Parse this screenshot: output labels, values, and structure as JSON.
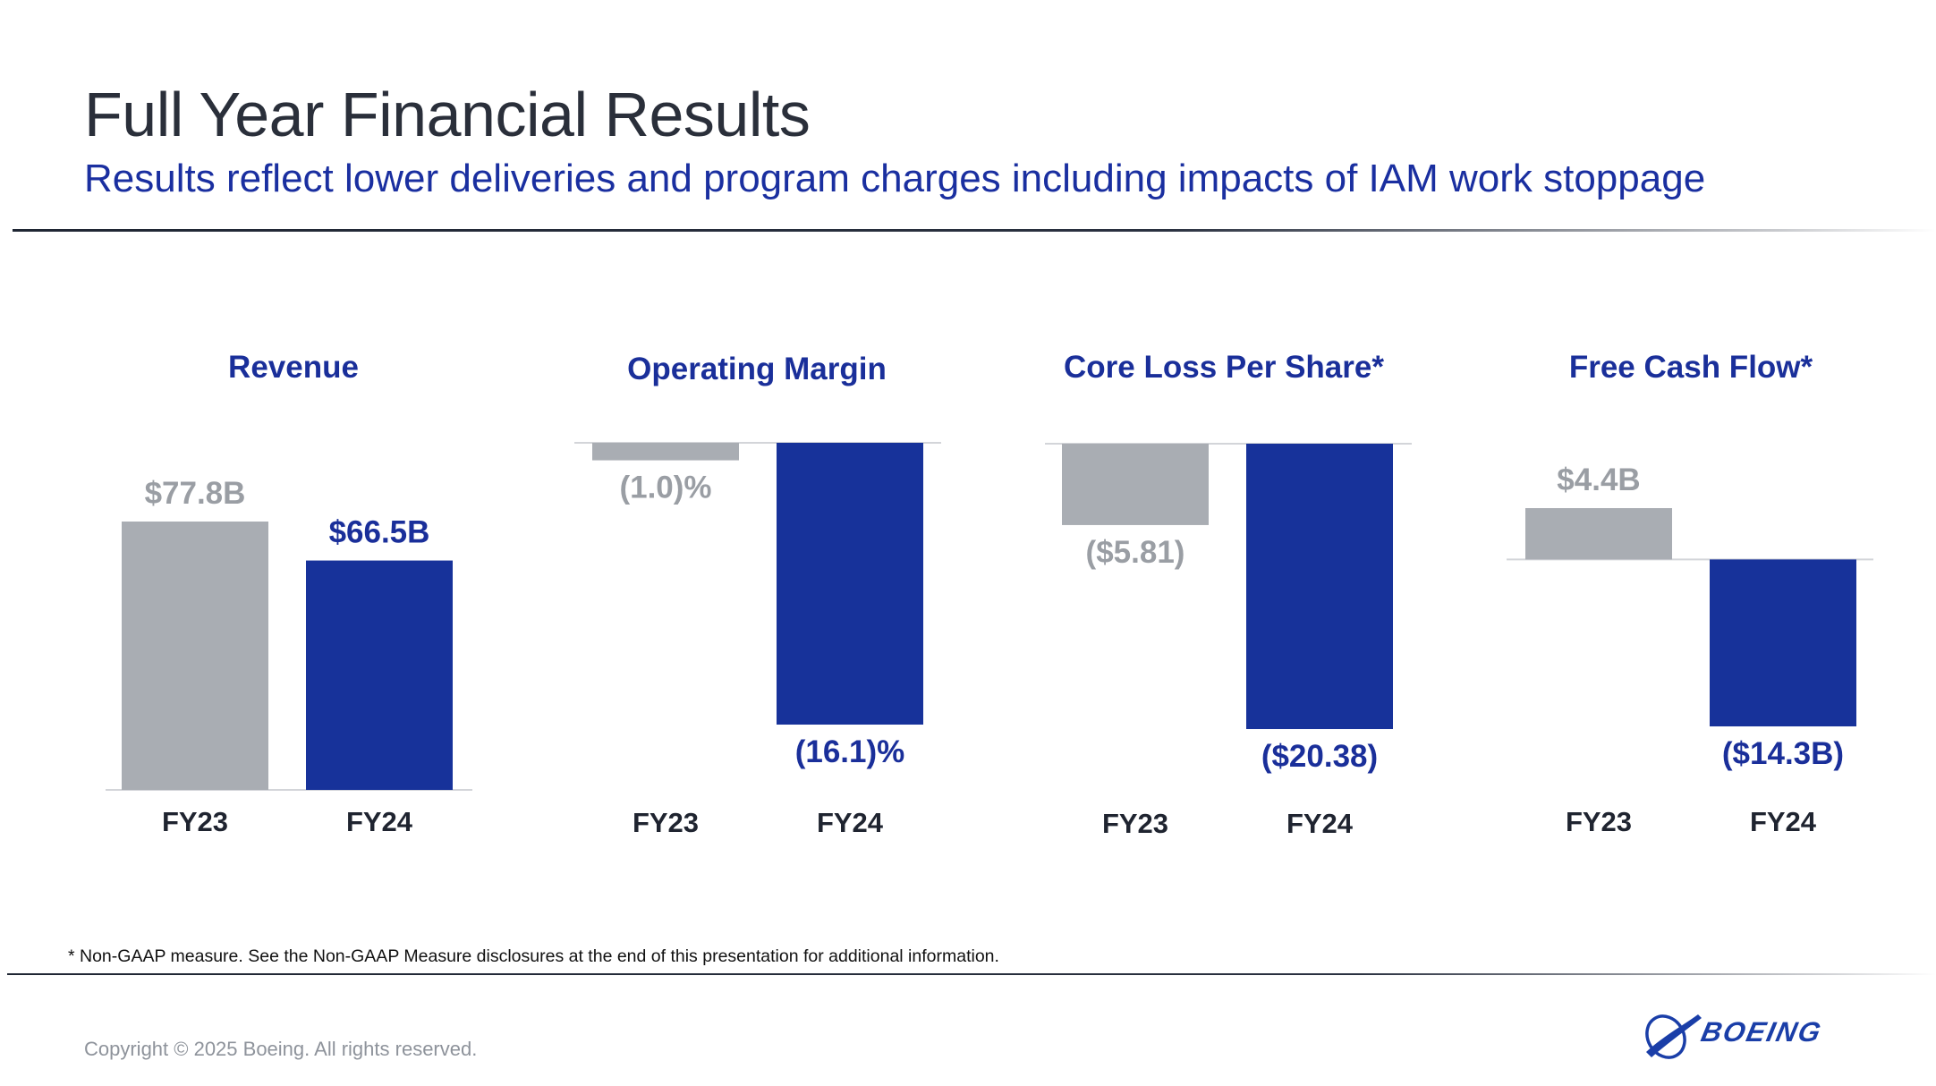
{
  "header": {
    "title": "Full Year Financial Results",
    "subtitle": "Results reflect lower deliveries and program charges including impacts of IAM work stoppage"
  },
  "footer": {
    "footnote": "* Non-GAAP measure. See the Non-GAAP Measure disclosures at the end of this presentation for additional information.",
    "copyright": "Copyright © 2025 Boeing. All rights reserved.",
    "logo_text": "BOEING"
  },
  "colors": {
    "fy23": "#a9adb3",
    "fy24": "#17329a",
    "fy23_label": "#9a9ea4",
    "fy24_label": "#1a2f9a"
  },
  "chart_data": [
    {
      "type": "bar",
      "title": "Revenue",
      "categories": [
        "FY23",
        "FY24"
      ],
      "values": [
        77.8,
        66.5
      ],
      "labels": [
        "$77.8B",
        "$66.5B"
      ],
      "ylim": [
        0,
        77.8
      ],
      "unit": "billion USD"
    },
    {
      "type": "bar",
      "title": "Operating Margin",
      "categories": [
        "FY23",
        "FY24"
      ],
      "values": [
        -1.0,
        -16.1
      ],
      "labels": [
        "(1.0)%",
        "(16.1)%"
      ],
      "ylim": [
        -16.1,
        0
      ],
      "unit": "percent"
    },
    {
      "type": "bar",
      "title": "Core Loss Per Share*",
      "categories": [
        "FY23",
        "FY24"
      ],
      "values": [
        -5.81,
        -20.38
      ],
      "labels": [
        "($5.81)",
        "($20.38)"
      ],
      "ylim": [
        -20.38,
        0
      ],
      "unit": "USD per share"
    },
    {
      "type": "bar",
      "title": "Free Cash Flow*",
      "categories": [
        "FY23",
        "FY24"
      ],
      "values": [
        4.4,
        -14.3
      ],
      "labels": [
        "$4.4B",
        "($14.3B)"
      ],
      "ylim": [
        -14.3,
        4.4
      ],
      "unit": "billion USD"
    }
  ]
}
